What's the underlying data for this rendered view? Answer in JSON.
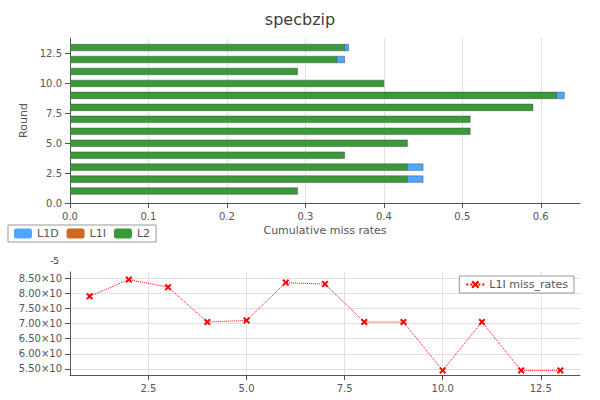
{
  "chart_data": [
    {
      "type": "bar",
      "orientation": "horizontal",
      "stacked": true,
      "title": "specbzip",
      "xlabel": "Cumulative miss rates",
      "ylabel": "Round",
      "x": [
        1,
        2,
        3,
        4,
        5,
        6,
        7,
        8,
        9,
        10,
        11,
        12,
        13
      ],
      "series": [
        {
          "name": "L2",
          "color": "#3a9a3a",
          "values": [
            0.29,
            0.43,
            0.43,
            0.35,
            0.43,
            0.51,
            0.51,
            0.59,
            0.62,
            0.4,
            0.29,
            0.34,
            0.35
          ]
        },
        {
          "name": "L1I",
          "color": "#d06820",
          "values": [
            0.0,
            0.0,
            0.0,
            0.0,
            0.0,
            0.0,
            0.0,
            0.0,
            0.0,
            0.0,
            0.0,
            0.0,
            0.0
          ]
        },
        {
          "name": "L1D",
          "color": "#4da6ff",
          "values": [
            0.0,
            0.02,
            0.02,
            0.0,
            0.0,
            0.0,
            0.0,
            0.0,
            0.01,
            0.0,
            0.0,
            0.01,
            0.005
          ]
        }
      ],
      "xlim": [
        0.0,
        0.65
      ],
      "xticks": [
        {
          "value": 0,
          "label": "0.0"
        },
        0.1,
        0.2,
        0.3,
        0.4,
        0.5,
        0.6
      ],
      "ylim": [
        0.0,
        13.8
      ],
      "yticks": [
        {
          "value": 0,
          "label": "0.0"
        },
        2.5,
        {
          "value": 5,
          "label": "5.0"
        },
        7.5,
        {
          "value": 10,
          "label": "10.0"
        },
        12.5
      ],
      "grid": true,
      "legend": "lower left"
    },
    {
      "type": "line",
      "x": [
        1,
        2,
        3,
        4,
        5,
        6,
        7,
        8,
        9,
        10,
        11,
        12,
        13
      ],
      "series": [
        {
          "name": "L1I miss_rates",
          "color": "red",
          "marker": "x",
          "line_style": "dotted",
          "values": [
            7.9e-05,
            8.45e-05,
            8.2e-05,
            7.05e-05,
            7.1e-05,
            8.35e-05,
            8.3e-05,
            7.05e-05,
            7.05e-05,
            5.45e-05,
            7.05e-05,
            5.45e-05,
            5.45e-05
          ]
        }
      ],
      "xlim": [
        0.5,
        13.5
      ],
      "xticks": [
        2.5,
        {
          "value": 5,
          "label": "5.0"
        },
        7.5,
        {
          "value": 10,
          "label": "10.0"
        },
        12.5
      ],
      "ylim": [
        5.3e-05,
        8.7e-05
      ],
      "yticks": [
        {
          "value": 5.5e-05,
          "label": "5.50×10"
        },
        {
          "value": 6e-05,
          "label": "6.00×10"
        },
        {
          "value": 6.5e-05,
          "label": "6.50×10"
        },
        {
          "value": 7e-05,
          "label": "7.00×10"
        },
        {
          "value": 7.5e-05,
          "label": "7.50×10"
        },
        {
          "value": 8e-05,
          "label": "8.00×10"
        },
        {
          "value": 8.5e-05,
          "label": "8.50×10"
        }
      ],
      "annotations": [
        "-5"
      ],
      "grid": true,
      "legend": "upper right"
    }
  ]
}
